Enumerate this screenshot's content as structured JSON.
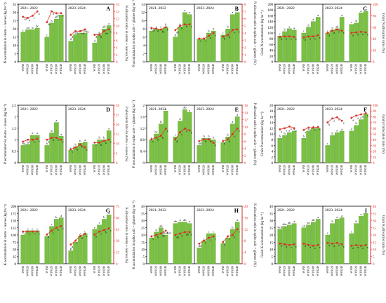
{
  "figure": {
    "treatments": [
      "W0N0",
      "W0N120",
      "W0N180",
      "W0N240",
      "W1N0",
      "W1N120",
      "W1N180",
      "W1N240"
    ],
    "bar_color": "#7ac143",
    "line_color": "#e8332a",
    "season_labels": [
      "2021–2022",
      "2023–2024"
    ]
  },
  "chart_data": [
    {
      "panel": "A",
      "type": "bar",
      "ylabel": "N accumulation in stems + leaves (kg ha⁻¹)",
      "y2label": "N allocation ratio in stems + leaves (%)",
      "ylim": [
        0,
        35
      ],
      "yticks": [
        0,
        5,
        10,
        15,
        20,
        25,
        30,
        35
      ],
      "y2lim": [
        0,
        16
      ],
      "y2ticks": [
        0,
        2,
        4,
        6,
        8,
        10,
        12,
        14,
        16
      ],
      "seasons": [
        {
          "label": "2021–2022",
          "bars": [
            18,
            19.5,
            19.5,
            20.5,
            15,
            23.5,
            26,
            28.5
          ],
          "bar_letters": [
            "c",
            "cd",
            "d",
            "bc",
            "c",
            "b",
            "ab",
            "a"
          ],
          "ratio": [
            12.5,
            12.2,
            12.8,
            14,
            11,
            14,
            13.5,
            13.5
          ],
          "ratio_letters": [
            "cd",
            "a",
            "c",
            "a",
            "bc",
            "b",
            "b",
            "a"
          ]
        },
        {
          "label": "2023–2024",
          "bars": [
            12.5,
            16.5,
            17.5,
            17.5,
            11.5,
            16.5,
            20,
            22
          ],
          "bar_letters": [
            "d",
            "d",
            "cd",
            "bc",
            "d",
            "b",
            "ab",
            "a"
          ],
          "ratio": [
            7.5,
            8.5,
            8.5,
            9,
            7.5,
            7.5,
            8.5,
            9
          ],
          "ratio_letters": [
            "d",
            "d",
            "cd",
            "bc",
            "d",
            "b",
            "ab",
            "a"
          ]
        }
      ]
    },
    {
      "panel": "B",
      "type": "bar",
      "ylabel": "N accumulation in spike axis + glumes (kg ha⁻¹)",
      "y2label": "N allocation ratio in spike axis + glumes (%)",
      "ylim": [
        0,
        14
      ],
      "yticks": [
        0,
        2,
        4,
        6,
        8,
        10,
        12,
        14
      ],
      "y2lim": [
        0,
        8
      ],
      "y2ticks": [
        0,
        1,
        2,
        3,
        4,
        5,
        6,
        7,
        8
      ],
      "seasons": [
        {
          "label": "2021–2022",
          "bars": [
            7.5,
            8,
            8,
            8.5,
            6,
            8.5,
            12,
            11.5
          ],
          "bar_letters": [
            "d",
            "c",
            "c",
            "b",
            "d",
            "b",
            "a",
            "a"
          ],
          "ratio": [
            4.7,
            4.6,
            4.5,
            4.8,
            4.4,
            5.0,
            5.2,
            5.2
          ],
          "ratio_letters": [
            "de",
            "d",
            "bc",
            "b",
            "de",
            "b",
            "b",
            "a"
          ]
        },
        {
          "label": "2023–2024",
          "bars": [
            5.5,
            5.5,
            7,
            7.5,
            6.5,
            8,
            11.5,
            12
          ],
          "bar_letters": [
            "c",
            "c",
            "b",
            "b",
            "c",
            "b",
            "a",
            "a"
          ],
          "ratio": [
            3.2,
            3.2,
            3.6,
            4.0,
            3.5,
            3.7,
            4.4,
            4.5
          ],
          "ratio_letters": [
            "c",
            "c",
            "b",
            "a",
            "b",
            "b",
            "a",
            "a"
          ]
        }
      ]
    },
    {
      "panel": "C",
      "type": "bar",
      "ylabel": "Grain N accumulation (kg ha⁻¹)",
      "y2label": "Grain N allocation ratio (%)",
      "ylim": [
        0,
        200
      ],
      "yticks": [
        0,
        20,
        40,
        60,
        80,
        100,
        120,
        140,
        160,
        180,
        200
      ],
      "y2lim": [
        0,
        100
      ],
      "y2ticks": [
        0,
        20,
        40,
        60,
        80,
        100
      ],
      "seasons": [
        {
          "label": "2021–2022",
          "bars": [
            90,
            105,
            115,
            110,
            100,
            120,
            140,
            155
          ],
          "bar_letters": [
            "c",
            "b",
            "a",
            "a",
            "c",
            "b",
            "a",
            "a"
          ],
          "ratio": [
            43,
            44,
            44,
            43,
            42,
            44,
            44,
            46
          ],
          "ratio_letters": [
            "a",
            "a",
            "a",
            "a",
            "a",
            "a",
            "a",
            "a"
          ]
        },
        {
          "label": "2023–2024",
          "bars": [
            100,
            110,
            115,
            155,
            130,
            135,
            170,
            175
          ],
          "bar_letters": [
            "c",
            "b",
            "ab",
            "a",
            "c",
            "b",
            "a",
            "a"
          ],
          "ratio": [
            50,
            54,
            56,
            54,
            50,
            51,
            52,
            51
          ],
          "ratio_letters": [
            "a",
            "a",
            "a",
            "a",
            "a",
            "a",
            "a",
            "a"
          ]
        }
      ]
    },
    {
      "panel": "D",
      "type": "bar",
      "ylabel": "P accumulation in stems + leaves (kg ha⁻¹)",
      "y2label": "P allocation ratio in stems + leaves (%)",
      "ylim": [
        0,
        2.5
      ],
      "yticks": [
        0,
        0.5,
        1,
        1.5,
        2,
        2.5
      ],
      "y2lim": [
        0,
        30
      ],
      "y2ticks": [
        0,
        5,
        10,
        15,
        20,
        25,
        30
      ],
      "seasons": [
        {
          "label": "2021–2022",
          "bars": [
            0.75,
            0.8,
            1.2,
            1.2,
            0.75,
            1.3,
            1.75,
            1.15
          ],
          "bar_letters": [
            "b",
            "b",
            "a",
            "a",
            "b",
            "b",
            "a",
            "a"
          ],
          "ratio": [
            11,
            12,
            12,
            12.5,
            12,
            13,
            13,
            12
          ],
          "ratio_letters": [
            "b",
            "b",
            "a",
            "a",
            "b",
            "b",
            "a",
            "a"
          ]
        },
        {
          "label": "2023–2024",
          "bars": [
            0.55,
            0.7,
            0.85,
            0.9,
            0.8,
            1.0,
            1.0,
            1.4
          ],
          "bar_letters": [
            "c",
            "b",
            "b",
            "a",
            "c",
            "b",
            "b",
            "a"
          ],
          "ratio": [
            7,
            8,
            9.5,
            8,
            10.5,
            10.5,
            11.5,
            12
          ],
          "ratio_letters": [
            "c",
            "b",
            "b",
            "a",
            "c",
            "b",
            "b",
            "a"
          ]
        }
      ]
    },
    {
      "panel": "E",
      "type": "bar",
      "ylabel": "P accumulation in spike axis + glumes (kg ha⁻¹)",
      "y2label": "P allocation ratio in spike axis + glumes (%)",
      "ylim": [
        0,
        2.0
      ],
      "yticks": [
        0,
        0.4,
        0.8,
        1.2,
        1.6,
        2.0
      ],
      "y2lim": [
        0,
        16
      ],
      "y2ticks": [
        0,
        2,
        4,
        6,
        8,
        10,
        12,
        14,
        16
      ],
      "seasons": [
        {
          "label": "2021–2022",
          "bars": [
            0.8,
            1.0,
            1.35,
            1.8,
            0.9,
            1.45,
            1.85,
            1.75
          ],
          "bar_letters": [
            "c",
            "bc",
            "b",
            "a",
            "c",
            "b",
            "ab",
            "a"
          ],
          "ratio": [
            6.5,
            7,
            7.5,
            9.5,
            6.5,
            8.5,
            9.5,
            9
          ],
          "ratio_letters": [
            "c",
            "b",
            "b",
            "a",
            "d",
            "c",
            "a",
            "b"
          ]
        },
        {
          "label": "2023–2024",
          "bars": [
            0.6,
            0.85,
            0.85,
            0.8,
            0.7,
            0.9,
            1.35,
            1.6
          ],
          "bar_letters": [
            "b",
            "b",
            "b",
            "b",
            "b",
            "b",
            "a",
            "a"
          ],
          "ratio": [
            6,
            6.5,
            6.5,
            5.5,
            6,
            6.5,
            8,
            9.5
          ],
          "ratio_letters": [
            "b",
            "b",
            "b",
            "b",
            "b",
            "b",
            "a",
            "a"
          ]
        }
      ]
    },
    {
      "panel": "F",
      "type": "bar",
      "ylabel": "Grain P accumulation (kg ha⁻¹)",
      "y2label": "Grain P allocation ratio (%)",
      "ylim": [
        0,
        20
      ],
      "yticks": [
        0,
        2,
        4,
        6,
        8,
        10,
        12,
        14,
        16,
        18,
        20
      ],
      "y2lim": [
        0,
        100
      ],
      "y2ticks": [
        0,
        10,
        20,
        30,
        40,
        50,
        60,
        70,
        80,
        90,
        100
      ],
      "seasons": [
        {
          "label": "2021–2022",
          "bars": [
            8.5,
            9.5,
            10.5,
            11,
            8.5,
            11,
            12,
            12
          ],
          "bar_letters": [
            "b",
            "b",
            "a",
            "a",
            "b",
            "a",
            "a",
            "a"
          ],
          "ratio": [
            58,
            60,
            63,
            60,
            57,
            61,
            61,
            62
          ],
          "ratio_letters": [
            "a",
            "a",
            "a",
            "a",
            "a",
            "a",
            "a",
            "a"
          ]
        },
        {
          "label": "2023–2024",
          "bars": [
            6,
            9.5,
            10.5,
            11,
            11,
            13,
            15,
            17
          ],
          "bar_letters": [
            "c",
            "b",
            "a",
            "a",
            "d",
            "b",
            "a",
            "a"
          ],
          "ratio": [
            70,
            77,
            79,
            73,
            78,
            82,
            84,
            86
          ],
          "ratio_letters": [
            "b",
            "a",
            "a",
            "a",
            "a",
            "a",
            "a",
            "a"
          ]
        }
      ]
    },
    {
      "panel": "G",
      "type": "bar",
      "ylabel": "K accumulation in stems + leaves (kg ha⁻¹)",
      "y2label": "K allocation ratio in stems + leaves (%)",
      "ylim": [
        0,
        200
      ],
      "yticks": [
        0,
        25,
        50,
        75,
        100,
        125,
        150,
        175,
        200
      ],
      "y2lim": [
        0,
        75
      ],
      "y2ticks": [
        0,
        15,
        30,
        45,
        60,
        75
      ],
      "seasons": [
        {
          "label": "2021–2022",
          "bars": [
            100,
            115,
            115,
            115,
            95,
            130,
            155,
            160
          ],
          "bar_letters": [
            "c",
            "c",
            "c",
            "c",
            "d",
            "c",
            "b",
            "a"
          ],
          "ratio": [
            42,
            42,
            42,
            42,
            38,
            43,
            47,
            49
          ],
          "ratio_letters": [
            "c",
            "c",
            "c",
            "c",
            "d",
            "c",
            "b",
            "a"
          ]
        },
        {
          "label": "2023–2024",
          "bars": [
            45,
            75,
            95,
            105,
            120,
            135,
            155,
            170
          ],
          "bar_letters": [
            "g",
            "f",
            "d",
            "c",
            "e",
            "c",
            "b",
            "a"
          ],
          "ratio": [
            25,
            30,
            36,
            39,
            38,
            42,
            44,
            46
          ],
          "ratio_letters": [
            "g",
            "f",
            "d",
            "c",
            "e",
            "c",
            "b",
            "a"
          ]
        }
      ]
    },
    {
      "panel": "H",
      "type": "bar",
      "ylabel": "K accumulation in spike axis + glumes (kg ha⁻¹)",
      "y2label": "K allocation ratio in spike axis + glumes (%)",
      "ylim": [
        0,
        40
      ],
      "yticks": [
        0,
        5,
        10,
        15,
        20,
        25,
        30,
        35,
        40
      ],
      "y2lim": [
        0,
        20
      ],
      "y2ticks": [
        0,
        4,
        8,
        12,
        16,
        20
      ],
      "seasons": [
        {
          "label": "2021–2022",
          "bars": [
            18,
            22,
            25,
            20,
            28,
            29,
            29,
            28
          ],
          "bar_letters": [
            "c",
            "b",
            "ab",
            "bcd",
            "ab",
            "a",
            "ab",
            "a"
          ],
          "ratio": [
            9.5,
            10,
            10.5,
            11.5,
            10,
            10.5,
            11,
            11
          ],
          "ratio_letters": [
            "c",
            "b",
            "ab",
            "bcd",
            "ab",
            "a",
            "ab",
            "a"
          ]
        },
        {
          "label": "2023–2024",
          "bars": [
            11,
            16,
            21,
            21,
            14,
            18,
            24,
            29
          ],
          "bar_letters": [
            "d",
            "c",
            "c",
            "c",
            "d",
            "c",
            "b",
            "a"
          ],
          "ratio": [
            7,
            8,
            9,
            9.5,
            7.5,
            9.5,
            10,
            12
          ],
          "ratio_letters": [
            "d",
            "c",
            "c",
            "c",
            "d",
            "c",
            "b",
            "a"
          ]
        }
      ]
    },
    {
      "panel": "I",
      "type": "bar",
      "ylabel": "Grain K accumulation (kg ha⁻¹)",
      "y2label": "Grain K allocation ratio (%)",
      "ylim": [
        0,
        40
      ],
      "yticks": [
        0,
        5,
        10,
        15,
        20,
        25,
        30,
        35,
        40
      ],
      "y2lim": [
        0,
        40
      ],
      "y2ticks": [
        0,
        5,
        10,
        15,
        20,
        25,
        30,
        35,
        40
      ],
      "seasons": [
        {
          "label": "2021–2022",
          "bars": [
            24,
            26,
            27,
            28,
            25,
            27,
            29,
            31
          ],
          "bar_letters": [
            "bcd",
            "abc",
            "ab",
            "a",
            "cd",
            "bc",
            "ab",
            "a"
          ],
          "ratio": [
            14,
            13.5,
            13,
            13.5,
            14,
            13,
            12.5,
            13
          ],
          "ratio_letters": [
            "a",
            "a",
            "a",
            "a",
            "a",
            "a",
            "a",
            "a"
          ]
        },
        {
          "label": "2023–2024",
          "bars": [
            20,
            28,
            31,
            32,
            21,
            28,
            33,
            35
          ],
          "bar_letters": [
            "c",
            "b",
            "a",
            "a",
            "c",
            "b",
            "a",
            "a"
          ],
          "ratio": [
            14.5,
            14,
            14.5,
            13.5,
            12.5,
            13,
            12.5,
            13
          ],
          "ratio_letters": [
            "a",
            "a",
            "a",
            "a",
            "a",
            "a",
            "a",
            "a"
          ]
        }
      ]
    }
  ]
}
